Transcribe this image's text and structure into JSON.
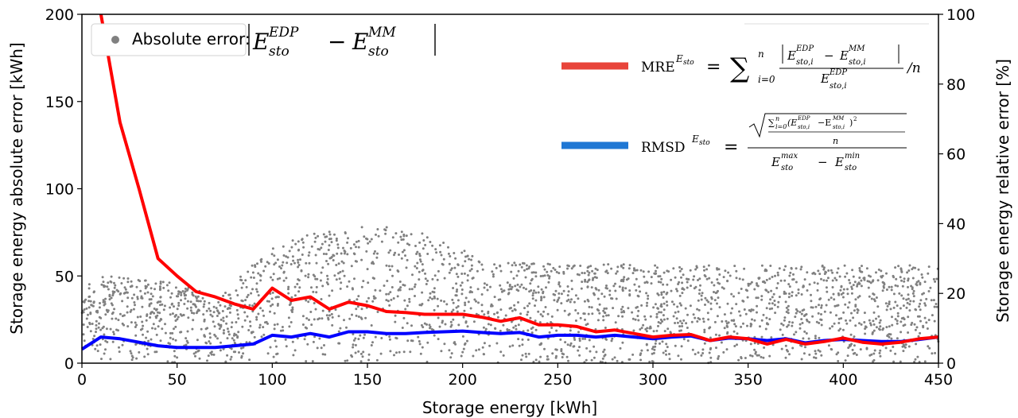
{
  "chart_data": {
    "type": "line",
    "xlabel": "Storage energy [kWh]",
    "ylabel": "Storage energy absolute error [kWh]",
    "y2label": "Storage energy relative error [%]",
    "xlim": [
      0,
      450
    ],
    "ylim": [
      0,
      200
    ],
    "y2lim": [
      0,
      100
    ],
    "x_ticks": [
      0,
      50,
      100,
      150,
      200,
      250,
      300,
      350,
      400,
      450
    ],
    "y_ticks": [
      0,
      50,
      100,
      150,
      200
    ],
    "y2_ticks": [
      0,
      20,
      40,
      60,
      80,
      100
    ],
    "grid": false,
    "legend": {
      "scatter_label": "Absolute error:",
      "scatter_formula": "|E_sto^EDP − E_sto^MM|",
      "mre_label": "MRE",
      "mre_formula": "MRE^{E_sto} = Σ_{i=0}^{n} |E_sto,i^EDP − E_sto,i^MM| / E_sto,i^EDP / n",
      "rmsd_label": "RMSD",
      "rmsd_formula": "RMSD^{E_sto} = √(Σ_{i=0}^{n}(E_sto,i^EDP − E_sto,i^MM)^2 / n) / (E_sto^max − E_sto^min)"
    },
    "colors": {
      "scatter": "#808080",
      "mre": "#ff0000",
      "rmsd": "#0000ff",
      "legend_mre": "#e8443a",
      "legend_rmsd": "#1f77d4"
    },
    "series": [
      {
        "name": "MRE",
        "axis": "right",
        "x": [
          10,
          20,
          30,
          40,
          50,
          60,
          70,
          80,
          90,
          100,
          110,
          120,
          130,
          140,
          150,
          160,
          170,
          180,
          190,
          200,
          210,
          220,
          230,
          240,
          250,
          260,
          270,
          280,
          290,
          300,
          310,
          320,
          330,
          340,
          350,
          360,
          370,
          380,
          390,
          400,
          410,
          420,
          430,
          440,
          450
        ],
        "values": [
          100,
          69,
          50,
          30,
          25,
          20.5,
          19,
          17,
          15.5,
          21.5,
          18,
          19,
          15.5,
          17.5,
          16.5,
          14.8,
          14.5,
          14,
          14,
          14,
          13.2,
          12,
          13,
          11,
          11,
          10.5,
          9,
          9.5,
          8.5,
          7.5,
          8,
          8.2,
          6.5,
          7.5,
          7,
          5.5,
          6.8,
          5.5,
          6.2,
          7.2,
          6,
          5.5,
          6,
          7,
          7.5
        ]
      },
      {
        "name": "RMSD",
        "axis": "right",
        "x": [
          0,
          10,
          20,
          30,
          40,
          50,
          60,
          70,
          80,
          90,
          100,
          110,
          120,
          130,
          140,
          150,
          160,
          170,
          180,
          190,
          200,
          210,
          220,
          230,
          240,
          250,
          260,
          270,
          280,
          290,
          300,
          310,
          320,
          330,
          340,
          350,
          360,
          370,
          380,
          390,
          400,
          410,
          420,
          430,
          440,
          450
        ],
        "values": [
          4,
          7.5,
          7,
          6,
          5,
          4.5,
          4.5,
          4.5,
          5,
          5.5,
          8,
          7.5,
          8.5,
          7.5,
          9,
          9,
          8.5,
          8.5,
          8.8,
          9,
          9.2,
          8.8,
          8.5,
          8.8,
          7.5,
          8,
          8,
          7.5,
          8,
          7.5,
          7,
          7.5,
          7.8,
          6.5,
          7.2,
          7,
          6.5,
          7,
          5.8,
          6.5,
          6.8,
          6.5,
          6.2,
          6.2,
          6.8,
          7.5
        ]
      },
      {
        "name": "Absolute error",
        "axis": "left",
        "type": "scatter",
        "envelope": {
          "upper_x": [
            0,
            10,
            40,
            50,
            60,
            70,
            80,
            90,
            100,
            110,
            120,
            130,
            140,
            150,
            160,
            170,
            180,
            190,
            200,
            210,
            220,
            240,
            260,
            280,
            300,
            340,
            380,
            420,
            450
          ],
          "upper_y": [
            45,
            50,
            48,
            46,
            43,
            34,
            46,
            57,
            66,
            71,
            74,
            76,
            78,
            80,
            79,
            77,
            74,
            70,
            65,
            60,
            58,
            57,
            57,
            57,
            56,
            56,
            56,
            56,
            57
          ],
          "lower_y": [
            10,
            2,
            1,
            0,
            0,
            0,
            0,
            0,
            0,
            0,
            0,
            0,
            0,
            0,
            0,
            0,
            0,
            0,
            0,
            0,
            0,
            0,
            0,
            0,
            0,
            0,
            0,
            0,
            0
          ]
        }
      }
    ]
  }
}
